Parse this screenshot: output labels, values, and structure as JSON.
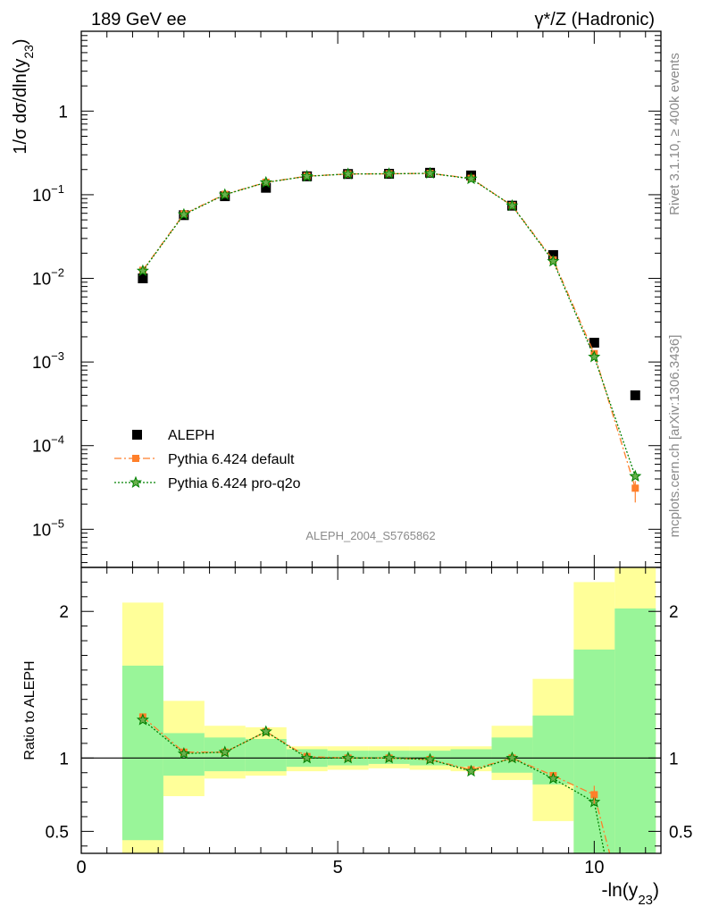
{
  "header": {
    "left": "189 GeV ee",
    "right": "γ*/Z (Hadronic)"
  },
  "side_text": {
    "rivet": "Rivet 3.1.10, ≥ 400k events",
    "mcplots": "mcplots.cern.ch [arXiv:1306.3436]"
  },
  "watermark": "ALEPH_2004_S5765862",
  "chart_data": [
    {
      "type": "scatter",
      "panel": "main",
      "ylabel": "1/σ dσ/dln(y23)",
      "yscale": "log",
      "ylim": [
        3.5e-06,
        9.0
      ],
      "xlim": [
        0,
        11.3
      ],
      "yticks": [
        {
          "value": 1e-05,
          "base": "10",
          "exp": "−5"
        },
        {
          "value": 0.0001,
          "base": "10",
          "exp": "−4"
        },
        {
          "value": 0.001,
          "base": "10",
          "exp": "−3"
        },
        {
          "value": 0.01,
          "base": "10",
          "exp": "−2"
        },
        {
          "value": 0.1,
          "base": "10",
          "exp": "−1"
        },
        {
          "value": 1,
          "base": "1",
          "exp": ""
        }
      ],
      "legend_position": "lower-left",
      "series": [
        {
          "name": "ALEPH",
          "color": "#000000",
          "marker": "square",
          "x": [
            1.2,
            2.0,
            2.8,
            3.6,
            4.4,
            5.2,
            6.0,
            6.8,
            7.6,
            8.4,
            9.2,
            10.0,
            10.8
          ],
          "y": [
            0.01,
            0.057,
            0.096,
            0.121,
            0.166,
            0.177,
            0.178,
            0.183,
            0.17,
            0.074,
            0.019,
            0.0017,
            0.0004
          ]
        },
        {
          "name": "Pythia 6.424 default",
          "color": "#ff7f2a",
          "marker": "square-small",
          "line": "dash-dot",
          "x": [
            1.2,
            2.0,
            2.8,
            3.6,
            4.4,
            5.2,
            6.0,
            6.8,
            7.6,
            8.4,
            9.2,
            10.0,
            10.8
          ],
          "y": [
            0.0125,
            0.059,
            0.101,
            0.141,
            0.167,
            0.177,
            0.178,
            0.18,
            0.157,
            0.074,
            0.0166,
            0.00126,
            3.1e-05
          ]
        },
        {
          "name": "Pythia 6.424 pro-q2o",
          "color": "#008000",
          "marker": "star",
          "line": "dotted",
          "x": [
            1.2,
            2.0,
            2.8,
            3.6,
            4.4,
            5.2,
            6.0,
            6.8,
            7.6,
            8.4,
            9.2,
            10.0,
            10.8
          ],
          "y": [
            0.0123,
            0.058,
            0.1,
            0.14,
            0.166,
            0.177,
            0.178,
            0.18,
            0.155,
            0.074,
            0.016,
            0.00115,
            4.3e-05
          ]
        }
      ]
    },
    {
      "type": "scatter",
      "panel": "ratio",
      "ylabel": "Ratio to ALEPH",
      "xlabel": "-ln(y23)",
      "ylim": [
        0.35,
        2.3
      ],
      "xlim": [
        0,
        11.3
      ],
      "xticks": [
        {
          "value": 0,
          "label": "0"
        },
        {
          "value": 5,
          "label": "5"
        },
        {
          "value": 10,
          "label": "10"
        }
      ],
      "yticks": [
        {
          "value": 0.5,
          "label": "0.5"
        },
        {
          "value": 1,
          "label": "1"
        },
        {
          "value": 2,
          "label": "2"
        }
      ],
      "bins": [
        0.8,
        1.6,
        2.4,
        3.2,
        4.0,
        4.8,
        5.6,
        6.4,
        7.2,
        8.0,
        8.8,
        9.6,
        10.4,
        11.2
      ],
      "bands": {
        "yellow": [
          [
            0.0,
            2.06
          ],
          [
            0.74,
            1.39
          ],
          [
            0.86,
            1.22
          ],
          [
            0.88,
            1.21
          ],
          [
            0.91,
            1.08
          ],
          [
            0.92,
            1.08
          ],
          [
            0.93,
            1.08
          ],
          [
            0.92,
            1.08
          ],
          [
            0.91,
            1.08
          ],
          [
            0.85,
            1.22
          ],
          [
            0.57,
            1.54
          ],
          [
            0.0,
            2.2
          ],
          [
            0.0,
            2.3
          ]
        ],
        "green": [
          [
            0.44,
            1.63
          ],
          [
            0.88,
            1.17
          ],
          [
            0.91,
            1.14
          ],
          [
            0.91,
            1.13
          ],
          [
            0.94,
            1.06
          ],
          [
            0.95,
            1.05
          ],
          [
            0.96,
            1.05
          ],
          [
            0.95,
            1.05
          ],
          [
            0.94,
            1.06
          ],
          [
            0.9,
            1.14
          ],
          [
            0.82,
            1.29
          ],
          [
            0.0,
            1.74
          ],
          [
            0.0,
            2.02
          ]
        ]
      },
      "series": [
        {
          "name": "Pythia 6.424 default",
          "color": "#ff7f2a",
          "x": [
            1.2,
            2.0,
            2.8,
            3.6,
            4.4,
            5.2,
            6.0,
            6.8,
            7.6,
            8.4,
            9.2,
            10.0,
            10.3
          ],
          "y": [
            1.28,
            1.04,
            1.04,
            1.18,
            1.01,
            1.0,
            1.0,
            0.99,
            0.92,
            1.0,
            0.88,
            0.75,
            0.35
          ]
        },
        {
          "name": "Pythia 6.424 pro-q2o",
          "color": "#008000",
          "x": [
            1.2,
            2.0,
            2.8,
            3.6,
            4.4,
            5.2,
            6.0,
            6.8,
            7.6,
            8.4,
            9.2,
            10.0,
            10.2
          ],
          "y": [
            1.26,
            1.03,
            1.04,
            1.18,
            1.0,
            1.0,
            1.0,
            0.99,
            0.91,
            1.0,
            0.86,
            0.7,
            0.35
          ]
        }
      ]
    }
  ]
}
